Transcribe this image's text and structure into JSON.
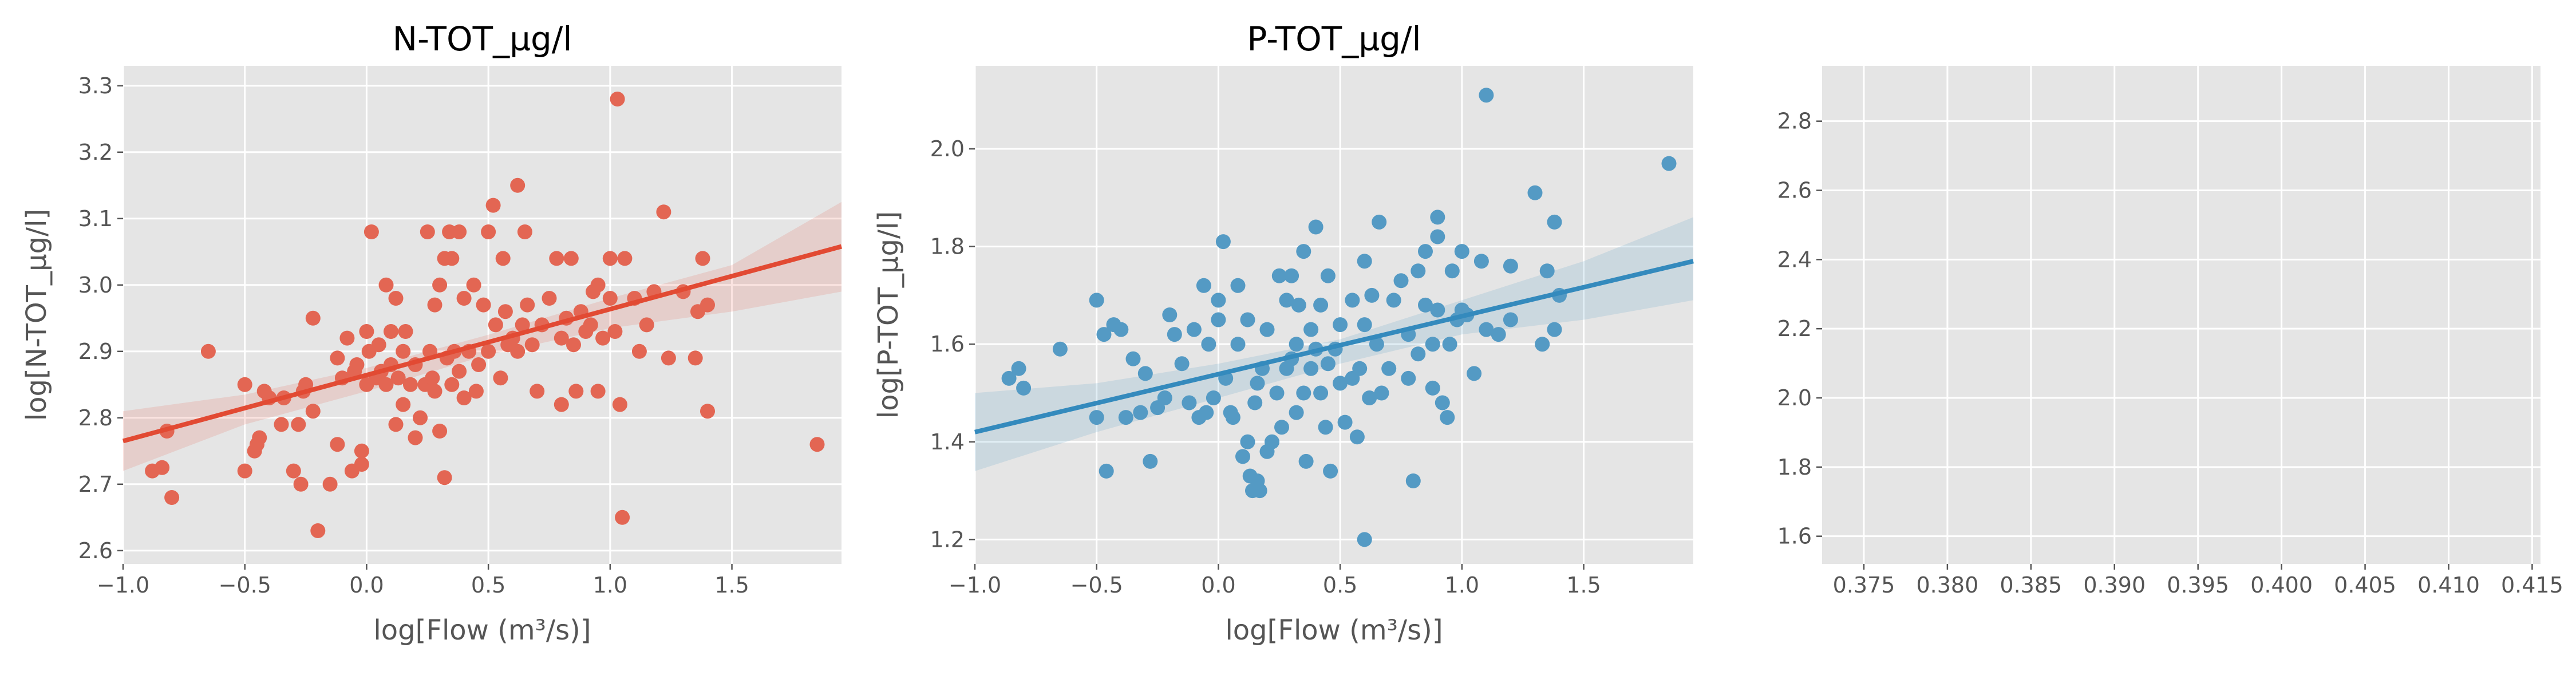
{
  "chart_data": [
    {
      "type": "scatter",
      "title": "N-TOT_µg/l",
      "xlabel": "log[Flow (m³/s)]",
      "ylabel": "log[N-TOT_µg/l]",
      "xlim": [
        -1.0,
        1.95
      ],
      "ylim": [
        2.58,
        3.33
      ],
      "xticks": [
        -1.0,
        -0.5,
        0.0,
        0.5,
        1.0,
        1.5
      ],
      "xtick_labels": [
        "−1.0",
        "−0.5",
        "0.0",
        "0.5",
        "1.0",
        "1.5"
      ],
      "yticks": [
        2.6,
        2.7,
        2.8,
        2.9,
        3.0,
        3.1,
        3.2,
        3.3
      ],
      "ytick_labels": [
        "2.6",
        "2.7",
        "2.8",
        "2.9",
        "3.0",
        "3.1",
        "3.2",
        "3.3"
      ],
      "grid": true,
      "color": "#e24a33",
      "regression": {
        "x": [
          -1.0,
          1.95
        ],
        "y": [
          2.765,
          3.058
        ]
      },
      "ci_band": {
        "x": [
          -1.0,
          -0.5,
          0.0,
          0.5,
          1.0,
          1.5,
          1.95
        ],
        "lower": [
          2.72,
          2.79,
          2.84,
          2.895,
          2.935,
          2.96,
          2.99
        ],
        "upper": [
          2.81,
          2.835,
          2.875,
          2.925,
          2.98,
          3.03,
          3.125
        ]
      },
      "points": [
        [
          -0.88,
          2.72
        ],
        [
          -0.84,
          2.725
        ],
        [
          -0.82,
          2.78
        ],
        [
          -0.8,
          2.68
        ],
        [
          -0.65,
          2.9
        ],
        [
          -0.5,
          2.72
        ],
        [
          -0.5,
          2.85
        ],
        [
          -0.46,
          2.75
        ],
        [
          -0.45,
          2.76
        ],
        [
          -0.44,
          2.77
        ],
        [
          -0.42,
          2.84
        ],
        [
          -0.4,
          2.83
        ],
        [
          -0.35,
          2.79
        ],
        [
          -0.34,
          2.83
        ],
        [
          -0.3,
          2.72
        ],
        [
          -0.28,
          2.79
        ],
        [
          -0.27,
          2.7
        ],
        [
          -0.26,
          2.84
        ],
        [
          -0.25,
          2.85
        ],
        [
          -0.22,
          2.81
        ],
        [
          -0.22,
          2.95
        ],
        [
          -0.2,
          2.63
        ],
        [
          -0.15,
          2.7
        ],
        [
          -0.12,
          2.76
        ],
        [
          -0.12,
          2.89
        ],
        [
          -0.1,
          2.86
        ],
        [
          -0.08,
          2.92
        ],
        [
          -0.06,
          2.72
        ],
        [
          -0.05,
          2.87
        ],
        [
          -0.04,
          2.88
        ],
        [
          -0.02,
          2.73
        ],
        [
          -0.02,
          2.75
        ],
        [
          0.0,
          2.85
        ],
        [
          0.0,
          2.93
        ],
        [
          0.01,
          2.9
        ],
        [
          0.02,
          3.08
        ],
        [
          0.04,
          2.86
        ],
        [
          0.05,
          2.91
        ],
        [
          0.06,
          2.87
        ],
        [
          0.08,
          2.85
        ],
        [
          0.08,
          3.0
        ],
        [
          0.1,
          2.88
        ],
        [
          0.1,
          2.93
        ],
        [
          0.12,
          2.79
        ],
        [
          0.12,
          2.98
        ],
        [
          0.13,
          2.86
        ],
        [
          0.15,
          2.82
        ],
        [
          0.15,
          2.9
        ],
        [
          0.16,
          2.93
        ],
        [
          0.18,
          2.85
        ],
        [
          0.2,
          2.77
        ],
        [
          0.2,
          2.88
        ],
        [
          0.22,
          2.8
        ],
        [
          0.24,
          2.85
        ],
        [
          0.25,
          3.08
        ],
        [
          0.26,
          2.9
        ],
        [
          0.27,
          2.86
        ],
        [
          0.28,
          2.84
        ],
        [
          0.28,
          2.97
        ],
        [
          0.3,
          2.78
        ],
        [
          0.3,
          3.0
        ],
        [
          0.32,
          2.71
        ],
        [
          0.32,
          3.04
        ],
        [
          0.33,
          2.89
        ],
        [
          0.34,
          3.08
        ],
        [
          0.35,
          2.85
        ],
        [
          0.35,
          3.04
        ],
        [
          0.36,
          2.9
        ],
        [
          0.38,
          2.87
        ],
        [
          0.38,
          3.08
        ],
        [
          0.4,
          2.83
        ],
        [
          0.4,
          2.98
        ],
        [
          0.42,
          2.9
        ],
        [
          0.44,
          3.0
        ],
        [
          0.45,
          2.84
        ],
        [
          0.46,
          2.88
        ],
        [
          0.48,
          2.97
        ],
        [
          0.5,
          2.9
        ],
        [
          0.5,
          3.08
        ],
        [
          0.52,
          3.12
        ],
        [
          0.53,
          2.94
        ],
        [
          0.55,
          2.86
        ],
        [
          0.56,
          3.04
        ],
        [
          0.57,
          2.96
        ],
        [
          0.58,
          2.91
        ],
        [
          0.6,
          2.92
        ],
        [
          0.62,
          2.9
        ],
        [
          0.62,
          3.15
        ],
        [
          0.64,
          2.94
        ],
        [
          0.65,
          3.08
        ],
        [
          0.66,
          2.97
        ],
        [
          0.68,
          2.91
        ],
        [
          0.7,
          2.84
        ],
        [
          0.72,
          2.94
        ],
        [
          0.75,
          2.98
        ],
        [
          0.78,
          3.04
        ],
        [
          0.8,
          2.82
        ],
        [
          0.8,
          2.92
        ],
        [
          0.82,
          2.95
        ],
        [
          0.84,
          3.04
        ],
        [
          0.85,
          2.91
        ],
        [
          0.86,
          2.84
        ],
        [
          0.88,
          2.96
        ],
        [
          0.9,
          2.93
        ],
        [
          0.92,
          2.94
        ],
        [
          0.93,
          2.99
        ],
        [
          0.95,
          2.84
        ],
        [
          0.95,
          3.0
        ],
        [
          0.97,
          2.92
        ],
        [
          1.0,
          2.98
        ],
        [
          1.0,
          3.04
        ],
        [
          1.02,
          2.93
        ],
        [
          1.03,
          3.28
        ],
        [
          1.04,
          2.82
        ],
        [
          1.05,
          2.65
        ],
        [
          1.06,
          3.04
        ],
        [
          1.1,
          2.98
        ],
        [
          1.12,
          2.9
        ],
        [
          1.15,
          2.94
        ],
        [
          1.18,
          2.99
        ],
        [
          1.22,
          3.11
        ],
        [
          1.24,
          2.89
        ],
        [
          1.3,
          2.99
        ],
        [
          1.35,
          2.89
        ],
        [
          1.36,
          2.96
        ],
        [
          1.38,
          3.04
        ],
        [
          1.4,
          2.81
        ],
        [
          1.4,
          2.97
        ],
        [
          1.85,
          2.76
        ]
      ]
    },
    {
      "type": "scatter",
      "title": "P-TOT_µg/l",
      "xlabel": "log[Flow (m³/s)]",
      "ylabel": "log[P-TOT_µg/l]",
      "xlim": [
        -1.0,
        1.95
      ],
      "ylim": [
        1.15,
        2.17
      ],
      "xticks": [
        -1.0,
        -0.5,
        0.0,
        0.5,
        1.0,
        1.5
      ],
      "xtick_labels": [
        "−1.0",
        "−0.5",
        "0.0",
        "0.5",
        "1.0",
        "1.5"
      ],
      "yticks": [
        1.2,
        1.4,
        1.6,
        1.8,
        2.0
      ],
      "ytick_labels": [
        "1.2",
        "1.4",
        "1.6",
        "1.8",
        "2.0"
      ],
      "grid": true,
      "color": "#348abd",
      "regression": {
        "x": [
          -1.0,
          1.95
        ],
        "y": [
          1.42,
          1.77
        ]
      },
      "ci_band": {
        "x": [
          -1.0,
          -0.5,
          0.0,
          0.5,
          1.0,
          1.5,
          1.95
        ],
        "lower": [
          1.34,
          1.42,
          1.49,
          1.56,
          1.62,
          1.65,
          1.69
        ],
        "upper": [
          1.5,
          1.52,
          1.56,
          1.61,
          1.69,
          1.77,
          1.86
        ]
      },
      "points": [
        [
          -0.86,
          1.53
        ],
        [
          -0.82,
          1.55
        ],
        [
          -0.8,
          1.51
        ],
        [
          -0.65,
          1.59
        ],
        [
          -0.5,
          1.69
        ],
        [
          -0.5,
          1.45
        ],
        [
          -0.47,
          1.62
        ],
        [
          -0.46,
          1.34
        ],
        [
          -0.43,
          1.64
        ],
        [
          -0.4,
          1.63
        ],
        [
          -0.38,
          1.45
        ],
        [
          -0.35,
          1.57
        ],
        [
          -0.32,
          1.46
        ],
        [
          -0.3,
          1.54
        ],
        [
          -0.28,
          1.36
        ],
        [
          -0.25,
          1.47
        ],
        [
          -0.22,
          1.49
        ],
        [
          -0.2,
          1.66
        ],
        [
          -0.18,
          1.62
        ],
        [
          -0.15,
          1.56
        ],
        [
          -0.12,
          1.48
        ],
        [
          -0.1,
          1.63
        ],
        [
          -0.08,
          1.45
        ],
        [
          -0.06,
          1.72
        ],
        [
          -0.05,
          1.46
        ],
        [
          -0.04,
          1.6
        ],
        [
          -0.02,
          1.49
        ],
        [
          0.0,
          1.65
        ],
        [
          0.0,
          1.69
        ],
        [
          0.02,
          1.81
        ],
        [
          0.03,
          1.53
        ],
        [
          0.05,
          1.46
        ],
        [
          0.06,
          1.45
        ],
        [
          0.08,
          1.6
        ],
        [
          0.08,
          1.72
        ],
        [
          0.1,
          1.37
        ],
        [
          0.12,
          1.4
        ],
        [
          0.12,
          1.65
        ],
        [
          0.13,
          1.33
        ],
        [
          0.14,
          1.3
        ],
        [
          0.15,
          1.48
        ],
        [
          0.16,
          1.32
        ],
        [
          0.16,
          1.52
        ],
        [
          0.17,
          1.3
        ],
        [
          0.18,
          1.55
        ],
        [
          0.2,
          1.38
        ],
        [
          0.2,
          1.63
        ],
        [
          0.22,
          1.4
        ],
        [
          0.24,
          1.5
        ],
        [
          0.25,
          1.74
        ],
        [
          0.26,
          1.43
        ],
        [
          0.28,
          1.55
        ],
        [
          0.28,
          1.69
        ],
        [
          0.3,
          1.57
        ],
        [
          0.3,
          1.74
        ],
        [
          0.32,
          1.46
        ],
        [
          0.32,
          1.6
        ],
        [
          0.33,
          1.68
        ],
        [
          0.35,
          1.5
        ],
        [
          0.35,
          1.79
        ],
        [
          0.36,
          1.36
        ],
        [
          0.38,
          1.55
        ],
        [
          0.38,
          1.63
        ],
        [
          0.4,
          1.84
        ],
        [
          0.4,
          1.59
        ],
        [
          0.42,
          1.5
        ],
        [
          0.42,
          1.68
        ],
        [
          0.44,
          1.43
        ],
        [
          0.45,
          1.56
        ],
        [
          0.45,
          1.74
        ],
        [
          0.46,
          1.34
        ],
        [
          0.48,
          1.59
        ],
        [
          0.5,
          1.52
        ],
        [
          0.5,
          1.64
        ],
        [
          0.52,
          1.44
        ],
        [
          0.55,
          1.53
        ],
        [
          0.55,
          1.69
        ],
        [
          0.57,
          1.41
        ],
        [
          0.58,
          1.55
        ],
        [
          0.6,
          1.2
        ],
        [
          0.6,
          1.64
        ],
        [
          0.6,
          1.77
        ],
        [
          0.62,
          1.49
        ],
        [
          0.63,
          1.7
        ],
        [
          0.65,
          1.6
        ],
        [
          0.66,
          1.85
        ],
        [
          0.67,
          1.5
        ],
        [
          0.7,
          1.55
        ],
        [
          0.72,
          1.69
        ],
        [
          0.75,
          1.73
        ],
        [
          0.78,
          1.53
        ],
        [
          0.78,
          1.62
        ],
        [
          0.8,
          1.32
        ],
        [
          0.82,
          1.58
        ],
        [
          0.82,
          1.75
        ],
        [
          0.85,
          1.68
        ],
        [
          0.85,
          1.79
        ],
        [
          0.88,
          1.51
        ],
        [
          0.88,
          1.6
        ],
        [
          0.9,
          1.67
        ],
        [
          0.9,
          1.82
        ],
        [
          0.9,
          1.86
        ],
        [
          0.92,
          1.48
        ],
        [
          0.94,
          1.45
        ],
        [
          0.95,
          1.6
        ],
        [
          0.96,
          1.75
        ],
        [
          0.98,
          1.65
        ],
        [
          1.0,
          1.79
        ],
        [
          1.0,
          1.67
        ],
        [
          1.02,
          1.66
        ],
        [
          1.05,
          1.54
        ],
        [
          1.08,
          1.77
        ],
        [
          1.1,
          2.11
        ],
        [
          1.1,
          1.63
        ],
        [
          1.15,
          1.62
        ],
        [
          1.2,
          1.76
        ],
        [
          1.2,
          1.65
        ],
        [
          1.3,
          1.91
        ],
        [
          1.33,
          1.6
        ],
        [
          1.35,
          1.75
        ],
        [
          1.38,
          1.85
        ],
        [
          1.38,
          1.63
        ],
        [
          1.4,
          1.7
        ],
        [
          1.85,
          1.97
        ]
      ]
    },
    {
      "type": "scatter",
      "title": "",
      "xlim": [
        0.3725,
        0.4155
      ],
      "ylim": [
        1.52,
        2.96
      ],
      "xticks": [
        0.375,
        0.38,
        0.385,
        0.39,
        0.395,
        0.4,
        0.405,
        0.41,
        0.415
      ],
      "xtick_labels": [
        "0.375",
        "0.380",
        "0.385",
        "0.390",
        "0.395",
        "0.400",
        "0.405",
        "0.410",
        "0.415"
      ],
      "yticks": [
        1.6,
        1.8,
        2.0,
        2.2,
        2.4,
        2.6,
        2.8
      ],
      "ytick_labels": [
        "1.6",
        "1.8",
        "2.0",
        "2.2",
        "2.4",
        "2.6",
        "2.8"
      ],
      "grid": true,
      "points": []
    }
  ]
}
